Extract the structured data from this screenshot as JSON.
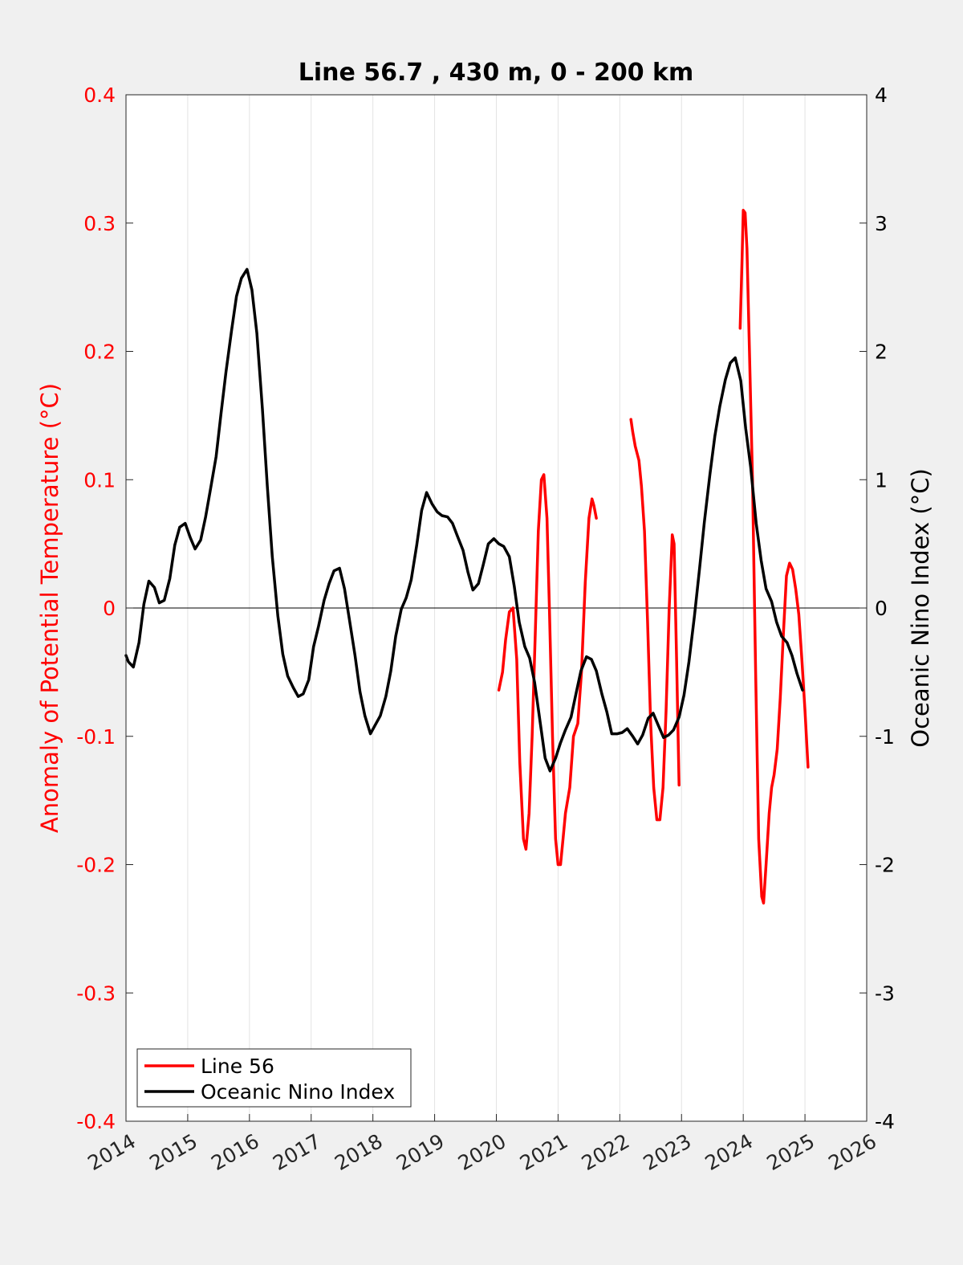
{
  "chart_data": {
    "type": "line",
    "title": "Line 56.7 , 430 m, 0 - 200 km",
    "ylabel_left": "Anomaly of Potential Temperature (°C)",
    "ylabel_right": "Oceanic Nino Index (°C)",
    "xlim": [
      2014,
      2026
    ],
    "ylim_left": [
      -0.4,
      0.4
    ],
    "ylim_right": [
      -4,
      4
    ],
    "x_ticks": [
      "2014",
      "2015",
      "2016",
      "2017",
      "2018",
      "2019",
      "2020",
      "2021",
      "2022",
      "2023",
      "2024",
      "2025",
      "2026"
    ],
    "y_ticks_left": [
      "0.4",
      "0.3",
      "0.2",
      "0.1",
      "0",
      "-0.1",
      "-0.2",
      "-0.3",
      "-0.4"
    ],
    "y_ticks_right": [
      "4",
      "3",
      "2",
      "1",
      "0",
      "-1",
      "-2",
      "-3",
      "-4"
    ],
    "grid": "vertical",
    "zero_line": true,
    "legend_position": "bottom-left",
    "colors": {
      "line56": "#ff0000",
      "oni": "#000000"
    },
    "series": [
      {
        "name": "Line 56",
        "axis": "left",
        "segments": [
          [
            [
              2020.04,
              -0.064
            ],
            [
              2020.1,
              -0.05
            ],
            [
              2020.15,
              -0.025
            ],
            [
              2020.21,
              -0.003
            ],
            [
              2020.27,
              0.0
            ],
            [
              2020.33,
              -0.04
            ],
            [
              2020.38,
              -0.12
            ],
            [
              2020.44,
              -0.18
            ],
            [
              2020.48,
              -0.188
            ],
            [
              2020.53,
              -0.16
            ],
            [
              2020.58,
              -0.1
            ],
            [
              2020.63,
              -0.02
            ],
            [
              2020.68,
              0.06
            ],
            [
              2020.73,
              0.1
            ],
            [
              2020.77,
              0.104
            ],
            [
              2020.82,
              0.07
            ],
            [
              2020.86,
              0.0
            ],
            [
              2020.91,
              -0.1
            ],
            [
              2020.96,
              -0.18
            ],
            [
              2021.0,
              -0.2
            ],
            [
              2021.04,
              -0.2
            ],
            [
              2021.08,
              -0.18
            ],
            [
              2021.12,
              -0.16
            ],
            [
              2021.19,
              -0.14
            ],
            [
              2021.25,
              -0.1
            ],
            [
              2021.32,
              -0.09
            ],
            [
              2021.38,
              -0.05
            ],
            [
              2021.44,
              0.02
            ],
            [
              2021.5,
              0.07
            ],
            [
              2021.55,
              0.085
            ],
            [
              2021.58,
              0.08
            ],
            [
              2021.62,
              0.07
            ]
          ],
          [
            [
              2022.18,
              0.147
            ],
            [
              2022.21,
              0.137
            ],
            [
              2022.25,
              0.126
            ],
            [
              2022.31,
              0.115
            ],
            [
              2022.35,
              0.095
            ],
            [
              2022.4,
              0.06
            ],
            [
              2022.45,
              -0.01
            ],
            [
              2022.5,
              -0.09
            ],
            [
              2022.55,
              -0.14
            ],
            [
              2022.6,
              -0.165
            ],
            [
              2022.65,
              -0.165
            ],
            [
              2022.7,
              -0.14
            ],
            [
              2022.75,
              -0.08
            ],
            [
              2022.8,
              0.0
            ],
            [
              2022.85,
              0.057
            ],
            [
              2022.88,
              0.05
            ],
            [
              2022.92,
              -0.04
            ],
            [
              2022.96,
              -0.138
            ]
          ],
          [
            [
              2023.95,
              0.218
            ],
            [
              2023.98,
              0.27
            ],
            [
              2024.0,
              0.31
            ],
            [
              2024.03,
              0.308
            ],
            [
              2024.06,
              0.28
            ],
            [
              2024.1,
              0.2
            ],
            [
              2024.15,
              0.1
            ],
            [
              2024.2,
              -0.05
            ],
            [
              2024.25,
              -0.18
            ],
            [
              2024.3,
              -0.225
            ],
            [
              2024.33,
              -0.23
            ],
            [
              2024.37,
              -0.2
            ],
            [
              2024.42,
              -0.16
            ],
            [
              2024.46,
              -0.14
            ],
            [
              2024.5,
              -0.13
            ],
            [
              2024.55,
              -0.11
            ],
            [
              2024.6,
              -0.07
            ],
            [
              2024.65,
              -0.02
            ],
            [
              2024.7,
              0.025
            ],
            [
              2024.75,
              0.035
            ],
            [
              2024.8,
              0.03
            ],
            [
              2024.85,
              0.015
            ],
            [
              2024.9,
              -0.005
            ],
            [
              2024.95,
              -0.04
            ],
            [
              2025.0,
              -0.08
            ],
            [
              2025.05,
              -0.124
            ]
          ]
        ]
      },
      {
        "name": "Oceanic Nino Index",
        "axis": "right",
        "points": [
          [
            2014.0,
            -0.37
          ],
          [
            2014.04,
            -0.42
          ],
          [
            2014.12,
            -0.46
          ],
          [
            2014.21,
            -0.27
          ],
          [
            2014.29,
            0.03
          ],
          [
            2014.37,
            0.21
          ],
          [
            2014.46,
            0.16
          ],
          [
            2014.54,
            0.04
          ],
          [
            2014.62,
            0.06
          ],
          [
            2014.71,
            0.23
          ],
          [
            2014.79,
            0.49
          ],
          [
            2014.87,
            0.63
          ],
          [
            2014.96,
            0.66
          ],
          [
            2015.04,
            0.55
          ],
          [
            2015.12,
            0.46
          ],
          [
            2015.21,
            0.53
          ],
          [
            2015.29,
            0.71
          ],
          [
            2015.37,
            0.93
          ],
          [
            2015.46,
            1.18
          ],
          [
            2015.54,
            1.52
          ],
          [
            2015.62,
            1.84
          ],
          [
            2015.71,
            2.16
          ],
          [
            2015.79,
            2.43
          ],
          [
            2015.87,
            2.57
          ],
          [
            2015.96,
            2.64
          ],
          [
            2016.04,
            2.48
          ],
          [
            2016.12,
            2.14
          ],
          [
            2016.21,
            1.55
          ],
          [
            2016.29,
            0.95
          ],
          [
            2016.37,
            0.4
          ],
          [
            2016.46,
            -0.06
          ],
          [
            2016.54,
            -0.36
          ],
          [
            2016.62,
            -0.53
          ],
          [
            2016.71,
            -0.62
          ],
          [
            2016.79,
            -0.69
          ],
          [
            2016.87,
            -0.67
          ],
          [
            2016.96,
            -0.56
          ],
          [
            2017.04,
            -0.3
          ],
          [
            2017.12,
            -0.14
          ],
          [
            2017.21,
            0.06
          ],
          [
            2017.29,
            0.19
          ],
          [
            2017.37,
            0.29
          ],
          [
            2017.46,
            0.31
          ],
          [
            2017.54,
            0.15
          ],
          [
            2017.62,
            -0.09
          ],
          [
            2017.71,
            -0.37
          ],
          [
            2017.79,
            -0.65
          ],
          [
            2017.87,
            -0.84
          ],
          [
            2017.96,
            -0.98
          ],
          [
            2018.04,
            -0.91
          ],
          [
            2018.12,
            -0.84
          ],
          [
            2018.21,
            -0.69
          ],
          [
            2018.29,
            -0.49
          ],
          [
            2018.37,
            -0.22
          ],
          [
            2018.46,
            -0.01
          ],
          [
            2018.54,
            0.08
          ],
          [
            2018.62,
            0.22
          ],
          [
            2018.71,
            0.49
          ],
          [
            2018.79,
            0.76
          ],
          [
            2018.87,
            0.9
          ],
          [
            2018.96,
            0.81
          ],
          [
            2019.04,
            0.75
          ],
          [
            2019.12,
            0.72
          ],
          [
            2019.21,
            0.71
          ],
          [
            2019.29,
            0.66
          ],
          [
            2019.37,
            0.56
          ],
          [
            2019.46,
            0.45
          ],
          [
            2019.54,
            0.28
          ],
          [
            2019.62,
            0.14
          ],
          [
            2019.71,
            0.19
          ],
          [
            2019.79,
            0.34
          ],
          [
            2019.87,
            0.5
          ],
          [
            2019.96,
            0.54
          ],
          [
            2020.04,
            0.5
          ],
          [
            2020.12,
            0.48
          ],
          [
            2020.21,
            0.4
          ],
          [
            2020.29,
            0.17
          ],
          [
            2020.37,
            -0.11
          ],
          [
            2020.46,
            -0.3
          ],
          [
            2020.54,
            -0.39
          ],
          [
            2020.62,
            -0.58
          ],
          [
            2020.71,
            -0.89
          ],
          [
            2020.79,
            -1.17
          ],
          [
            2020.87,
            -1.27
          ],
          [
            2020.96,
            -1.17
          ],
          [
            2021.04,
            -1.05
          ],
          [
            2021.12,
            -0.95
          ],
          [
            2021.21,
            -0.85
          ],
          [
            2021.29,
            -0.67
          ],
          [
            2021.37,
            -0.49
          ],
          [
            2021.46,
            -0.38
          ],
          [
            2021.54,
            -0.4
          ],
          [
            2021.62,
            -0.49
          ],
          [
            2021.71,
            -0.67
          ],
          [
            2021.79,
            -0.81
          ],
          [
            2021.87,
            -0.98
          ],
          [
            2021.96,
            -0.98
          ],
          [
            2022.04,
            -0.97
          ],
          [
            2022.12,
            -0.94
          ],
          [
            2022.21,
            -1.0
          ],
          [
            2022.29,
            -1.06
          ],
          [
            2022.37,
            -0.99
          ],
          [
            2022.46,
            -0.86
          ],
          [
            2022.54,
            -0.82
          ],
          [
            2022.62,
            -0.91
          ],
          [
            2022.71,
            -1.01
          ],
          [
            2022.79,
            -0.99
          ],
          [
            2022.87,
            -0.95
          ],
          [
            2022.96,
            -0.85
          ],
          [
            2023.04,
            -0.68
          ],
          [
            2023.12,
            -0.42
          ],
          [
            2023.21,
            -0.06
          ],
          [
            2023.29,
            0.3
          ],
          [
            2023.37,
            0.67
          ],
          [
            2023.46,
            1.04
          ],
          [
            2023.54,
            1.34
          ],
          [
            2023.62,
            1.57
          ],
          [
            2023.71,
            1.78
          ],
          [
            2023.79,
            1.91
          ],
          [
            2023.87,
            1.95
          ],
          [
            2023.96,
            1.77
          ],
          [
            2024.04,
            1.4
          ],
          [
            2024.12,
            1.1
          ],
          [
            2024.21,
            0.66
          ],
          [
            2024.29,
            0.37
          ],
          [
            2024.37,
            0.15
          ],
          [
            2024.46,
            0.05
          ],
          [
            2024.54,
            -0.11
          ],
          [
            2024.62,
            -0.22
          ],
          [
            2024.71,
            -0.27
          ],
          [
            2024.79,
            -0.37
          ],
          [
            2024.87,
            -0.51
          ],
          [
            2024.96,
            -0.64
          ]
        ]
      }
    ]
  },
  "legend": {
    "items": [
      {
        "label": "Line 56",
        "color": "#ff0000"
      },
      {
        "label": "Oceanic Nino Index",
        "color": "#000000"
      }
    ]
  }
}
